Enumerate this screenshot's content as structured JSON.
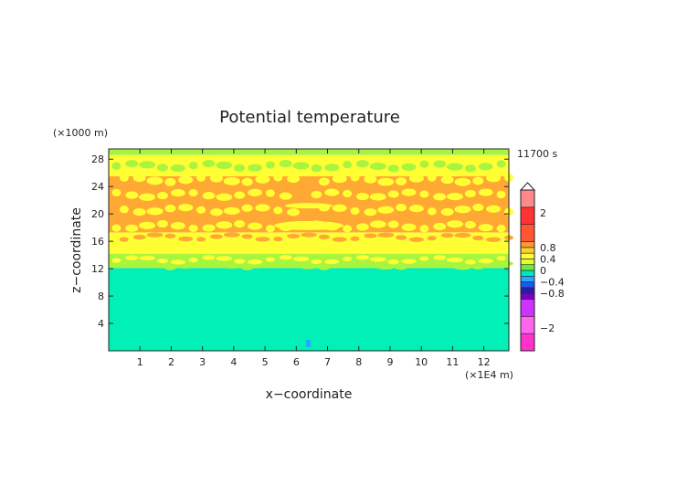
{
  "chart_data": {
    "type": "heatmap",
    "title": "Potential temperature",
    "xlabel": "x−coordinate",
    "ylabel": "z−coordinate",
    "x_unit": "(×1E4 m)",
    "y_unit": "(×1000 m)",
    "time_label": "11700 s",
    "xlim": [
      0,
      12.8
    ],
    "ylim": [
      0,
      29.5
    ],
    "x_ticks": [
      1,
      2,
      3,
      4,
      5,
      6,
      7,
      8,
      9,
      10,
      11,
      12
    ],
    "y_ticks": [
      4,
      8,
      12,
      16,
      20,
      24,
      28
    ],
    "grid": false,
    "colorbar": {
      "placement": "right",
      "levels": [
        -2.8,
        -2.2,
        -1.6,
        -1.0,
        -0.8,
        -0.6,
        -0.4,
        -0.2,
        0.0,
        0.2,
        0.4,
        0.6,
        0.8,
        1.0,
        1.6,
        2.2,
        2.8
      ],
      "colors": [
        "#ff33cc",
        "#ff66ee",
        "#cc33ff",
        "#7a00c8",
        "#2a1ea8",
        "#2255ee",
        "#22aaff",
        "#00e6c0",
        "#66ee44",
        "#ddff33",
        "#ffff33",
        "#ffcc33",
        "#ff9933",
        "#ff5533",
        "#ff3333",
        "#ff8888",
        "#ffaaaa"
      ],
      "tick_labels": [
        "2",
        "0.8",
        "0.4",
        "0",
        "−0.4",
        "−0.8",
        "−2"
      ],
      "tick_values": [
        2,
        0.8,
        0.4,
        0,
        -0.4,
        -0.8,
        -2
      ],
      "extend": "max"
    },
    "layers": [
      {
        "z_from": 0,
        "z_to": 12.1,
        "value": -0.15,
        "color": "#00f0b8"
      },
      {
        "z_from": 12.1,
        "z_to": 14.2,
        "value": 0.15,
        "color": "#a8f540"
      },
      {
        "z_from": 14.2,
        "z_to": 17.3,
        "value": 0.3,
        "color": "#ffff33"
      },
      {
        "z_from": 17.3,
        "z_to": 25.5,
        "value": 0.5,
        "color": "#ffa834"
      },
      {
        "z_from": 25.5,
        "z_to": 28.6,
        "value": 0.3,
        "color": "#ffff33"
      },
      {
        "z_from": 28.6,
        "z_to": 29.5,
        "value": 0.1,
        "color": "#a8f540"
      }
    ]
  }
}
